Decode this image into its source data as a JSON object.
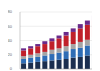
{
  "chart_data": {
    "type": "bar",
    "stacked": true,
    "grid": true,
    "tick_labels": "y",
    "categories": [
      null,
      null,
      null,
      null,
      null,
      null,
      null,
      null,
      null,
      null,
      null
    ],
    "ylim": [
      0,
      80
    ],
    "yticks": [
      0,
      20,
      40,
      60,
      80
    ],
    "series": [
      {
        "color": "#1b2e4f",
        "values": [
          8,
          9,
          10,
          11,
          12,
          13,
          14,
          16,
          17,
          19,
          21
        ]
      },
      {
        "color": "#2f6db5",
        "values": [
          6,
          7,
          7,
          8,
          9,
          10,
          11,
          12,
          13,
          14,
          15
        ]
      },
      {
        "color": "#a5a5a5",
        "values": [
          4,
          4,
          5,
          5,
          6,
          6,
          7,
          7,
          8,
          8,
          9
        ]
      },
      {
        "color": "#c0202a",
        "values": [
          8,
          9,
          10,
          11,
          12,
          14,
          15,
          17,
          19,
          21,
          23
        ]
      },
      {
        "color": "#6a2a8a",
        "values": [
          3,
          3,
          3,
          4,
          4,
          4,
          5,
          5,
          6,
          6,
          7
        ]
      }
    ]
  }
}
